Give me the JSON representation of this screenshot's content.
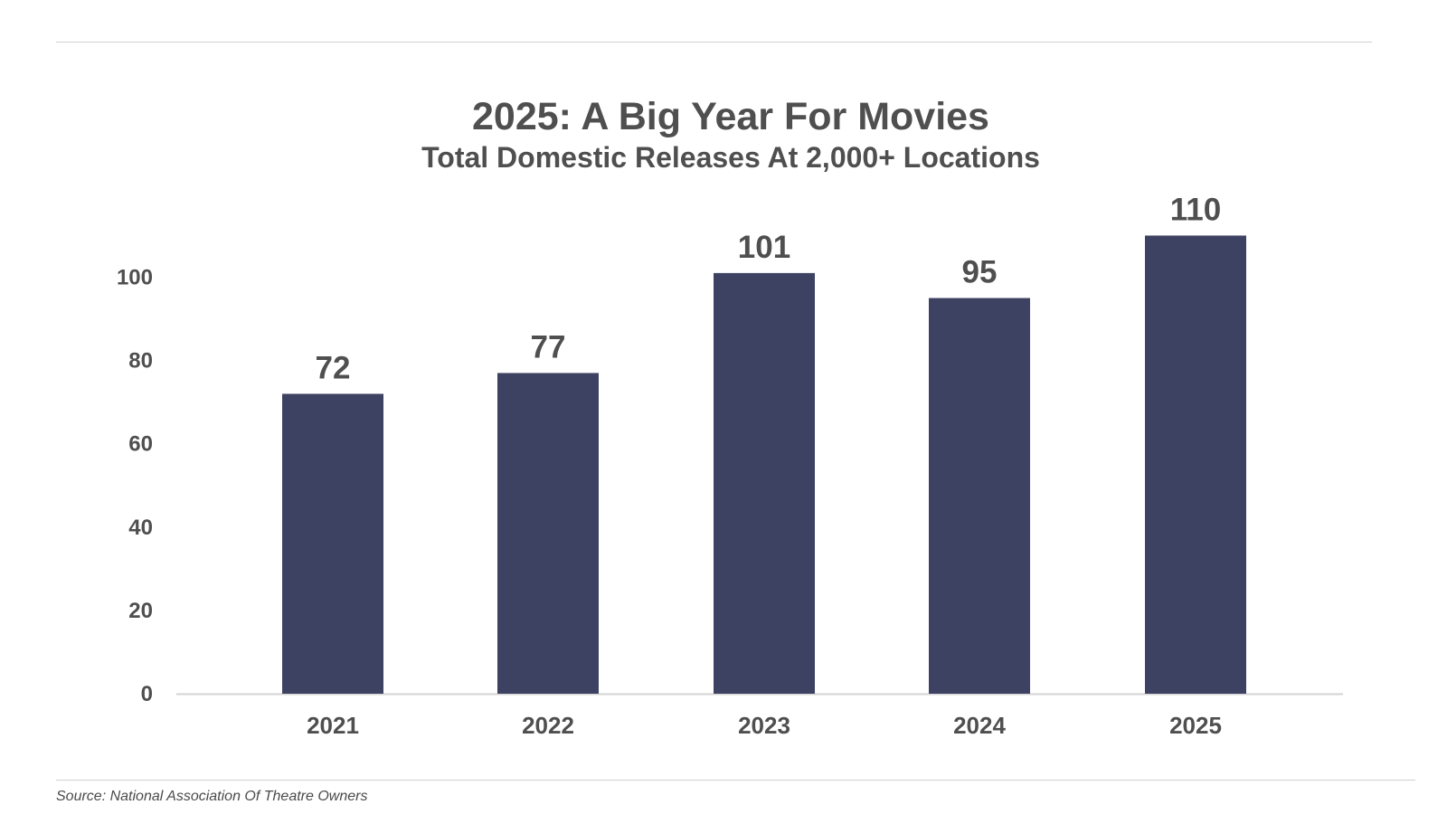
{
  "colors": {
    "bar": "#3d4263",
    "text": "#4f4f4f",
    "axis": "#d3d3d3"
  },
  "chart_data": {
    "type": "bar",
    "title": "2025: A Big Year For Movies",
    "subtitle": "Total Domestic Releases At 2,000+ Locations",
    "categories": [
      "2021",
      "2022",
      "2023",
      "2024",
      "2025"
    ],
    "values": [
      72,
      77,
      101,
      95,
      110
    ],
    "data_labels": [
      "72",
      "77",
      "101",
      "95",
      "110"
    ],
    "y_ticks": [
      0,
      20,
      40,
      60,
      80,
      100
    ],
    "ylim": [
      0,
      110
    ],
    "grid": false,
    "legend": "none",
    "xlabel": "",
    "ylabel": ""
  },
  "footer": {
    "source": "Source: National Association Of Theatre Owners"
  }
}
